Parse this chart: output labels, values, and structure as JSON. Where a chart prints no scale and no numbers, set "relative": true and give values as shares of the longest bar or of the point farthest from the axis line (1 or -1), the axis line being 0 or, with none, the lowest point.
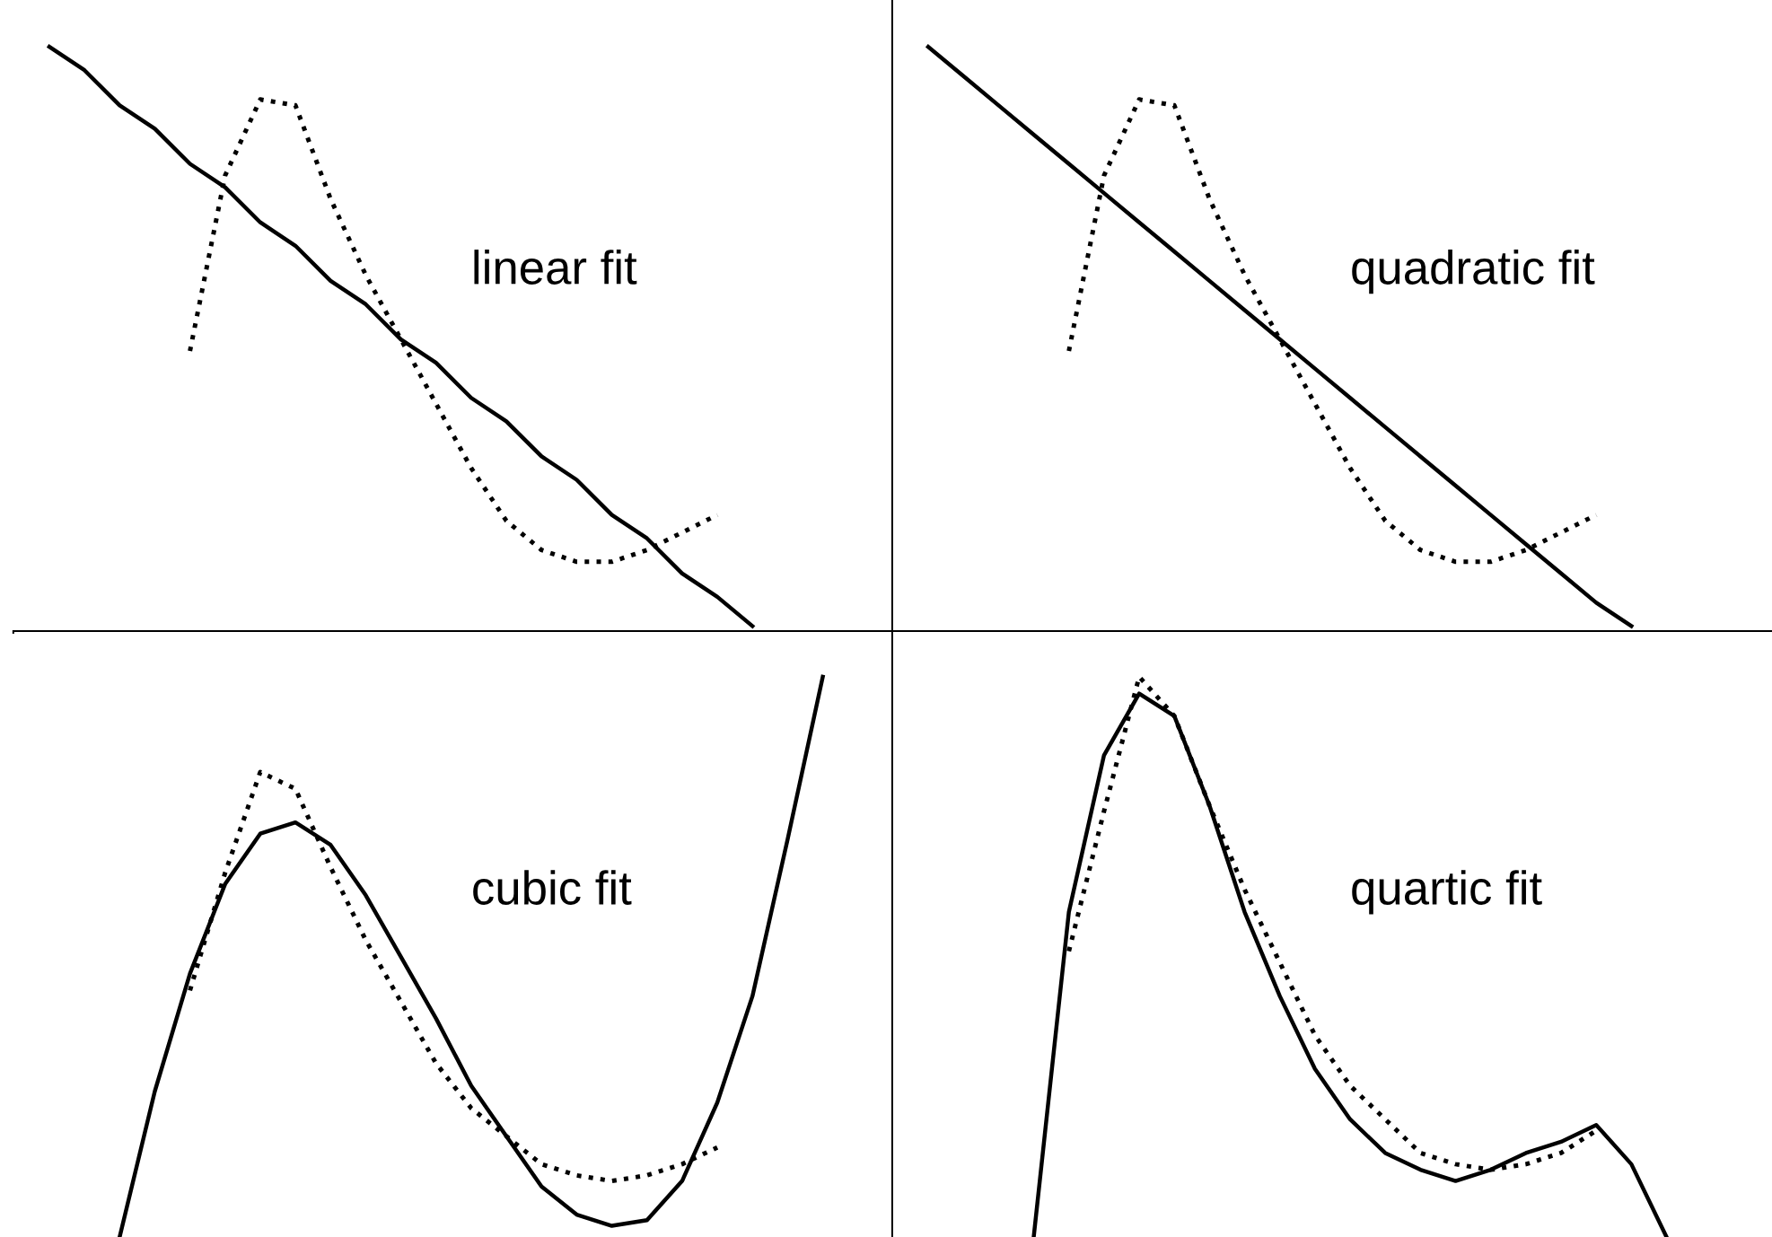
{
  "chart_data": [
    {
      "type": "line",
      "relative": true,
      "annotations": [
        "linear fit"
      ],
      "categories": [
        null,
        null,
        null,
        null,
        null,
        null,
        null,
        null,
        null,
        null,
        null,
        null,
        null,
        null,
        null,
        null,
        null,
        null,
        null,
        null,
        null,
        null,
        null,
        null,
        null,
        null
      ],
      "series": [
        {
          "color": "#000000",
          "line_style": "dotted",
          "values": [
            null,
            null,
            null,
            null,
            null,
            0.48,
            0.78,
            0.91,
            0.9,
            0.74,
            0.61,
            0.5,
            0.39,
            0.28,
            0.19,
            0.14,
            0.12,
            0.12,
            0.14,
            0.17,
            0.2,
            null,
            null,
            null,
            null,
            null
          ]
        },
        {
          "color": "#000000",
          "line_style": "solid",
          "values": [
            null,
            1.0,
            0.96,
            0.9,
            0.86,
            0.8,
            0.76,
            0.7,
            0.66,
            0.6,
            0.56,
            0.5,
            0.46,
            0.4,
            0.36,
            0.3,
            0.26,
            0.2,
            0.16,
            0.1,
            0.06,
            0.01,
            null,
            null,
            null,
            null
          ]
        }
      ]
    },
    {
      "type": "line",
      "relative": true,
      "annotations": [
        "quadratic fit"
      ],
      "categories": [
        null,
        null,
        null,
        null,
        null,
        null,
        null,
        null,
        null,
        null,
        null,
        null,
        null,
        null,
        null,
        null,
        null,
        null,
        null,
        null,
        null,
        null,
        null,
        null,
        null,
        null
      ],
      "series": [
        {
          "color": "#000000",
          "line_style": "dotted",
          "values": [
            null,
            null,
            null,
            null,
            null,
            0.48,
            0.78,
            0.91,
            0.9,
            0.74,
            0.61,
            0.5,
            0.39,
            0.28,
            0.19,
            0.14,
            0.12,
            0.12,
            0.14,
            0.17,
            0.2,
            null,
            null,
            null,
            null,
            null
          ]
        },
        {
          "color": "#000000",
          "line_style": "solid",
          "values": [
            null,
            1.0,
            0.95,
            0.9,
            0.85,
            0.8,
            0.75,
            0.7,
            0.65,
            0.6,
            0.55,
            0.5,
            0.45,
            0.4,
            0.35,
            0.3,
            0.25,
            0.2,
            0.15,
            0.1,
            0.05,
            0.01,
            null,
            null,
            null,
            null
          ]
        }
      ]
    },
    {
      "type": "line",
      "relative": true,
      "annotations": [
        "cubic fit"
      ],
      "categories": [
        null,
        null,
        null,
        null,
        null,
        null,
        null,
        null,
        null,
        null,
        null,
        null,
        null,
        null,
        null,
        null,
        null,
        null,
        null,
        null,
        null,
        null,
        null,
        null,
        null,
        null
      ],
      "series": [
        {
          "color": "#000000",
          "line_style": "dotted",
          "values": [
            null,
            null,
            null,
            null,
            null,
            0.44,
            0.65,
            0.83,
            0.8,
            0.66,
            0.53,
            0.42,
            0.31,
            0.23,
            0.18,
            0.13,
            0.11,
            0.1,
            0.11,
            0.13,
            0.16,
            null,
            null,
            null,
            null,
            null
          ]
        },
        {
          "color": "#000000",
          "line_style": "solid",
          "values": [
            null,
            null,
            null,
            0,
            0.26,
            0.47,
            0.63,
            0.72,
            0.74,
            0.7,
            0.61,
            0.5,
            0.39,
            0.27,
            0.18,
            0.09,
            0.04,
            0.02,
            0.03,
            0.1,
            0.24,
            0.43,
            0.71,
            1.0,
            null,
            null
          ]
        }
      ]
    },
    {
      "type": "line",
      "relative": true,
      "annotations": [
        "quartic fit"
      ],
      "categories": [
        null,
        null,
        null,
        null,
        null,
        null,
        null,
        null,
        null,
        null,
        null,
        null,
        null,
        null,
        null,
        null,
        null,
        null,
        null,
        null,
        null,
        null,
        null,
        null,
        null,
        null
      ],
      "series": [
        {
          "color": "#000000",
          "line_style": "dotted",
          "values": [
            null,
            null,
            null,
            null,
            null,
            0.51,
            0.76,
            1.0,
            0.93,
            0.77,
            0.62,
            0.49,
            0.36,
            0.27,
            0.21,
            0.15,
            0.13,
            0.12,
            0.13,
            0.15,
            0.19,
            null,
            null,
            null,
            null,
            null
          ]
        },
        {
          "color": "#000000",
          "line_style": "solid",
          "values": [
            null,
            null,
            null,
            null,
            0,
            0.58,
            0.86,
            0.97,
            0.93,
            0.77,
            0.58,
            0.43,
            0.3,
            0.21,
            0.15,
            0.12,
            0.1,
            0.12,
            0.15,
            0.17,
            0.2,
            0.13,
            0,
            null,
            null,
            null
          ]
        }
      ]
    }
  ]
}
